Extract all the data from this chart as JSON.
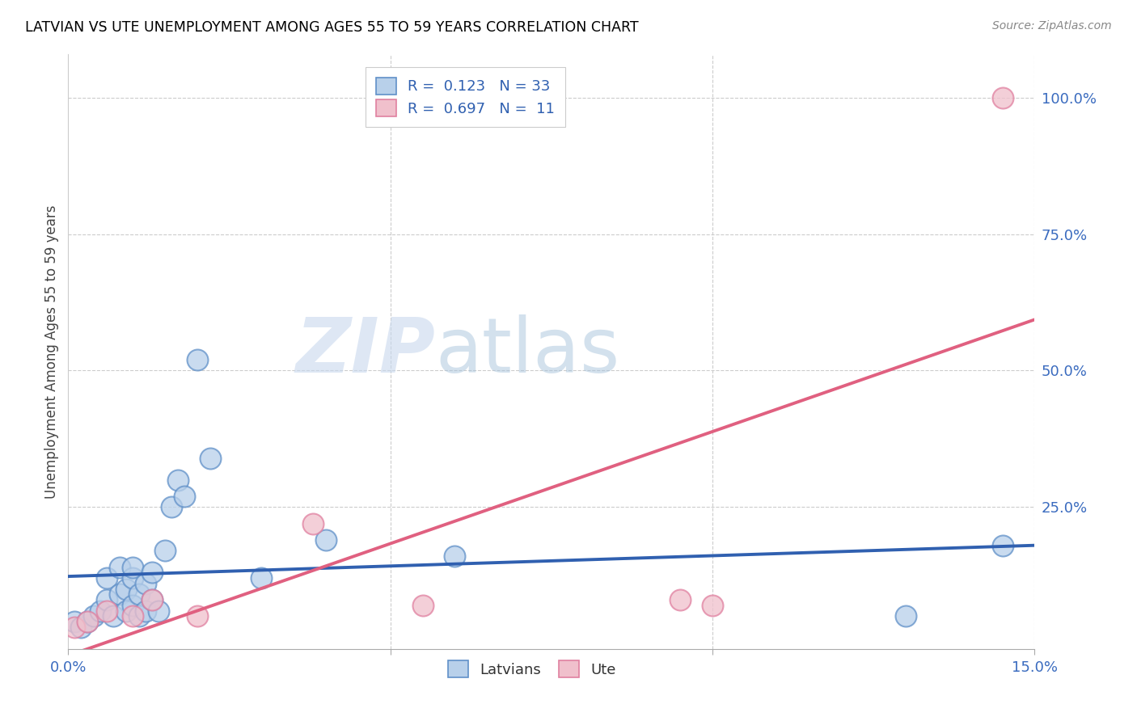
{
  "title": "LATVIAN VS UTE UNEMPLOYMENT AMONG AGES 55 TO 59 YEARS CORRELATION CHART",
  "source": "Source: ZipAtlas.com",
  "ylabel": "Unemployment Among Ages 55 to 59 years",
  "xlim": [
    0.0,
    0.15
  ],
  "ylim": [
    -0.01,
    1.08
  ],
  "xtick_positions": [
    0.0,
    0.05,
    0.1,
    0.15
  ],
  "xtick_labels": [
    "0.0%",
    "",
    "",
    "15.0%"
  ],
  "ytick_positions": [
    0.25,
    0.5,
    0.75,
    1.0
  ],
  "ytick_labels": [
    "25.0%",
    "50.0%",
    "75.0%",
    "100.0%"
  ],
  "latvian_color": "#b8d0ea",
  "latvian_edge_color": "#6090c8",
  "latvian_line_color": "#3060b0",
  "ute_color": "#f0c0cc",
  "ute_edge_color": "#e080a0",
  "ute_line_color": "#e06080",
  "latvian_x": [
    0.001,
    0.002,
    0.003,
    0.004,
    0.005,
    0.006,
    0.006,
    0.007,
    0.008,
    0.008,
    0.009,
    0.009,
    0.01,
    0.01,
    0.01,
    0.011,
    0.011,
    0.012,
    0.012,
    0.013,
    0.013,
    0.014,
    0.015,
    0.016,
    0.017,
    0.018,
    0.02,
    0.022,
    0.03,
    0.04,
    0.06,
    0.13,
    0.145
  ],
  "latvian_y": [
    0.04,
    0.03,
    0.04,
    0.05,
    0.06,
    0.08,
    0.12,
    0.05,
    0.09,
    0.14,
    0.06,
    0.1,
    0.07,
    0.12,
    0.14,
    0.05,
    0.09,
    0.06,
    0.11,
    0.08,
    0.13,
    0.06,
    0.17,
    0.25,
    0.3,
    0.27,
    0.52,
    0.34,
    0.12,
    0.19,
    0.16,
    0.05,
    0.18
  ],
  "ute_x": [
    0.001,
    0.003,
    0.006,
    0.01,
    0.013,
    0.02,
    0.038,
    0.055,
    0.095,
    0.1,
    0.145
  ],
  "ute_y": [
    0.03,
    0.04,
    0.06,
    0.05,
    0.08,
    0.05,
    0.22,
    0.07,
    0.08,
    0.07,
    1.0
  ],
  "grid_color": "#cccccc",
  "watermark_zip": "ZIP",
  "watermark_atlas": "atlas",
  "bottom_legend_labels": [
    "Latvians",
    "Ute"
  ]
}
